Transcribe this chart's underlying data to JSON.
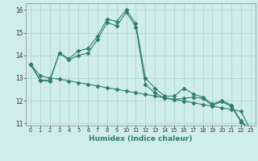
{
  "xlabel": "Humidex (Indice chaleur)",
  "x_values": [
    0,
    1,
    2,
    3,
    4,
    5,
    6,
    7,
    8,
    9,
    10,
    11,
    12,
    13,
    14,
    15,
    16,
    17,
    18,
    19,
    20,
    21,
    22,
    23
  ],
  "line1": [
    13.6,
    12.9,
    12.9,
    14.1,
    13.85,
    14.2,
    14.3,
    14.85,
    15.6,
    15.5,
    16.0,
    15.4,
    13.0,
    12.55,
    12.2,
    12.2,
    12.55,
    12.3,
    12.15,
    11.85,
    12.0,
    11.8,
    11.1,
    10.7
  ],
  "line2": [
    13.6,
    12.9,
    12.85,
    14.1,
    13.8,
    14.0,
    14.1,
    14.7,
    15.45,
    15.3,
    15.9,
    15.25,
    12.7,
    12.35,
    12.1,
    12.05,
    12.1,
    12.15,
    12.1,
    11.8,
    11.95,
    11.75,
    11.05,
    10.7
  ],
  "line3": [
    13.6,
    13.1,
    13.0,
    12.95,
    12.87,
    12.8,
    12.72,
    12.65,
    12.57,
    12.5,
    12.42,
    12.35,
    12.28,
    12.2,
    12.13,
    12.06,
    11.98,
    11.91,
    11.83,
    11.76,
    11.68,
    11.61,
    11.53,
    10.7
  ],
  "line_color": "#2e7d6e",
  "bg_color": "#d0eded",
  "grid_color": "#b8d8d8",
  "ylim": [
    10.9,
    16.3
  ],
  "yticks": [
    11,
    12,
    13,
    14,
    15,
    16
  ],
  "ytick_labels": [
    "11",
    "12",
    "13",
    "14",
    "15",
    "16"
  ]
}
